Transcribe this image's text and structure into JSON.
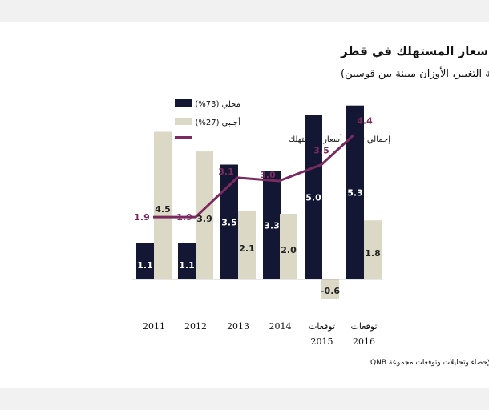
{
  "chart_data": {
    "type": "bar",
    "title": "التضخم في مؤشر أسعار المستهلك في قطر",
    "subtitle": "(نسبة التغيير، الأوزان مبينة بين قوسين)",
    "categories": [
      "2011",
      "2012",
      "2013",
      "2014",
      "2015",
      "2016"
    ],
    "category_prefix": [
      "",
      "",
      "",
      "",
      "توقعات",
      "توقعات"
    ],
    "series": [
      {
        "name": "محلي (73%)",
        "kind": "bar",
        "color": "#141733",
        "values": [
          1.1,
          1.1,
          3.5,
          3.3,
          5.0,
          5.3
        ]
      },
      {
        "name": "أجنبي (27%)",
        "kind": "bar",
        "color": "#dcd8c6",
        "values": [
          4.5,
          3.9,
          2.1,
          2.0,
          -0.6,
          1.8
        ]
      },
      {
        "name": "إجمالي تضخم أسعار المستهلك",
        "kind": "line",
        "color": "#7a2a5e",
        "values": [
          1.9,
          1.9,
          3.1,
          3.0,
          3.5,
          4.4
        ]
      }
    ],
    "ylim": [
      -0.6,
      5.3
    ],
    "grid": false,
    "legend_position": "top-left",
    "source": "المصادر: وزارة التخطيط التنموي والإحصاء وتحليلات وتوقعات مجموعة QNB"
  }
}
